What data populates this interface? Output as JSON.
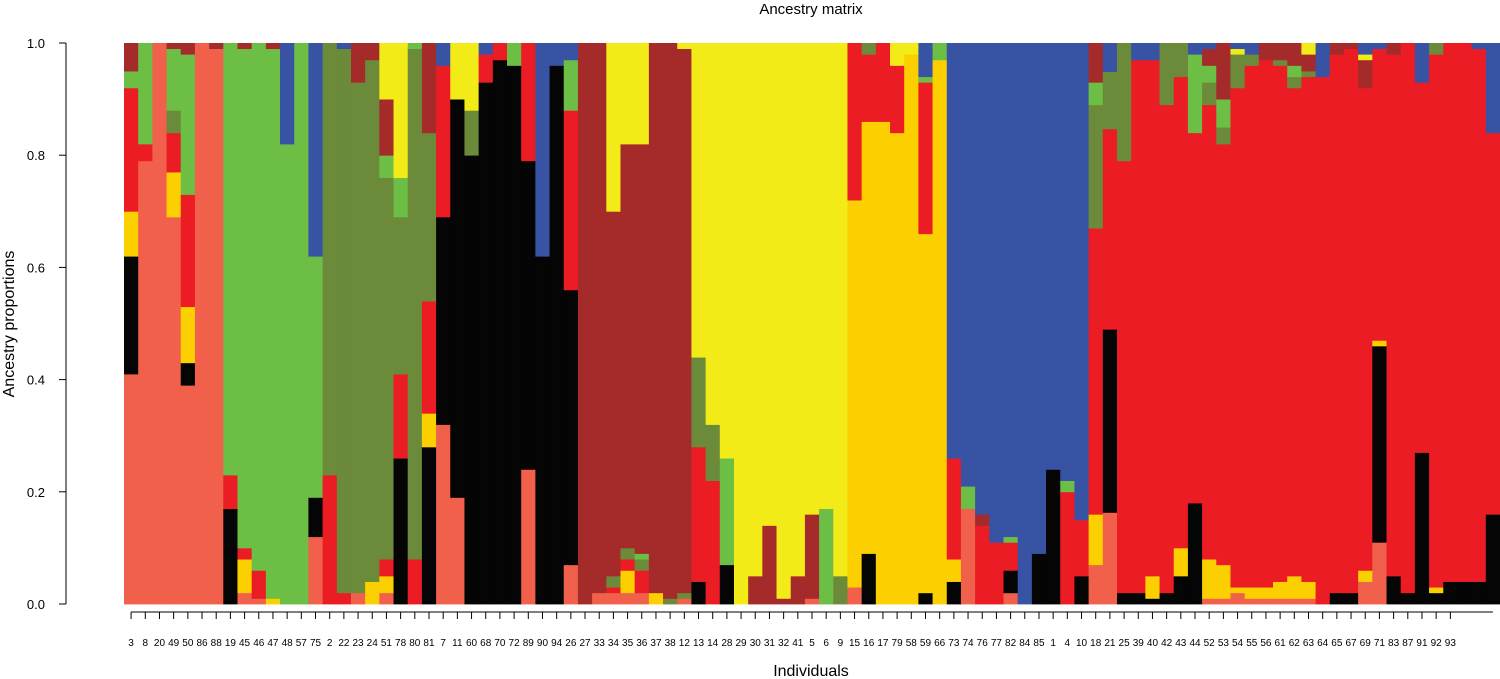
{
  "chart_data": {
    "type": "bar",
    "stacked": true,
    "title": "Ancestry matrix",
    "xlabel": "Individuals",
    "ylabel": "Ancestry proportions",
    "ylim": [
      0,
      1
    ],
    "yticks": [
      "0.0",
      "0.2",
      "0.4",
      "0.6",
      "0.8",
      "1.0"
    ],
    "grid": false,
    "cluster_colors": {
      "salmon": "#f0604a",
      "black": "#050505",
      "gold": "#fcd000",
      "red": "#ec1c24",
      "olive": "#6b8b3a",
      "green": "#6cbe45",
      "darkred": "#a52a2a",
      "yellow": "#f3eb18",
      "blue": "#3853a4"
    },
    "categories": [
      "3",
      "8",
      "20",
      "49",
      "50",
      "86",
      "88",
      "19",
      "45",
      "46",
      "47",
      "48",
      "57",
      "75",
      "2",
      "22",
      "23",
      "24",
      "51",
      "78",
      "80",
      "81",
      "7",
      "11",
      "60",
      "68",
      "70",
      "72",
      "89",
      "90",
      "94",
      "26",
      "27",
      "33",
      "34",
      "35",
      "36",
      "37",
      "38",
      "12",
      "13",
      "14",
      "28",
      "29",
      "30",
      "31",
      "32",
      "41",
      "5",
      "6",
      "9",
      "15",
      "16",
      "17",
      "79",
      "58",
      "59",
      "66",
      "73",
      "74",
      "76",
      "77",
      "82",
      "84",
      "85",
      "1",
      "4",
      "10",
      "18",
      "21",
      "25",
      "39",
      "40",
      "42",
      "43",
      "44",
      "52",
      "53",
      "54",
      "55",
      "56",
      "61",
      "62",
      "63",
      "64",
      "65",
      "67",
      "69",
      "71",
      "83",
      "87",
      "91",
      "92",
      "93"
    ],
    "bars": [
      {
        "salmon": 0.41,
        "black": 0.21,
        "gold": 0.08,
        "red": 0.22,
        "green": 0.03,
        "darkred": 0.05
      },
      {
        "salmon": 0.79,
        "red": 0.03,
        "green": 0.18
      },
      {
        "salmon": 1.0
      },
      {
        "salmon": 0.69,
        "olive": 0.04,
        "gold": 0.08,
        "red": 0.07,
        "green": 0.11,
        "darkred": 0.01
      },
      {
        "salmon": 0.39,
        "black": 0.04,
        "gold": 0.1,
        "red": 0.2,
        "green": 0.25,
        "darkred": 0.02
      },
      {
        "salmon": 1.0
      },
      {
        "salmon": 0.99,
        "darkred": 0.01
      },
      {
        "black": 0.17,
        "red": 0.06,
        "green": 0.77
      },
      {
        "salmon": 0.02,
        "gold": 0.06,
        "red": 0.02,
        "green": 0.89,
        "darkred": 0.01
      },
      {
        "salmon": 0.01,
        "red": 0.05,
        "green": 0.94
      },
      {
        "gold": 0.01,
        "green": 0.98,
        "darkred": 0.01
      },
      {
        "blue": 0.18,
        "green": 0.82
      },
      {
        "green": 1.0
      },
      {
        "salmon": 0.12,
        "black": 0.07,
        "blue": 0.38,
        "green": 0.43
      },
      {
        "olive": 0.77,
        "red": 0.23
      },
      {
        "olive": 0.97,
        "red": 0.02,
        "blue": 0.01
      },
      {
        "salmon": 0.02,
        "olive": 0.91,
        "darkred": 0.07
      },
      {
        "olive": 0.93,
        "gold": 0.04,
        "darkred": 0.03
      },
      {
        "salmon": 0.02,
        "olive": 0.68,
        "gold": 0.03,
        "red": 0.03,
        "green": 0.04,
        "yellow": 0.1,
        "darkred": 0.1
      },
      {
        "black": 0.26,
        "olive": 0.28,
        "red": 0.15,
        "green": 0.07,
        "yellow": 0.24
      },
      {
        "olive": 0.91,
        "red": 0.08,
        "green": 0.01
      },
      {
        "black": 0.28,
        "olive": 0.3,
        "red": 0.2,
        "gold": 0.06,
        "darkred": 0.16
      },
      {
        "salmon": 0.32,
        "black": 0.37,
        "red": 0.27,
        "blue": 0.04
      },
      {
        "salmon": 0.19,
        "black": 0.71,
        "yellow": 0.1
      },
      {
        "black": 0.8,
        "olive": 0.08,
        "yellow": 0.12
      },
      {
        "black": 0.93,
        "red": 0.05,
        "blue": 0.02
      },
      {
        "black": 0.97,
        "red": 0.03
      },
      {
        "black": 0.96,
        "green": 0.04
      },
      {
        "salmon": 0.24,
        "black": 0.55,
        "red": 0.21
      },
      {
        "black": 0.62,
        "blue": 0.38
      },
      {
        "black": 0.96,
        "blue": 0.04
      },
      {
        "salmon": 0.07,
        "black": 0.49,
        "red": 0.32,
        "blue": 0.03,
        "green": 0.09
      },
      {
        "darkred": 1.0
      },
      {
        "salmon": 0.02,
        "darkred": 0.98
      },
      {
        "salmon": 0.02,
        "olive": 0.02,
        "red": 0.01,
        "yellow": 0.3,
        "darkred": 0.65
      },
      {
        "salmon": 0.02,
        "olive": 0.02,
        "gold": 0.04,
        "red": 0.02,
        "yellow": 0.18,
        "darkred": 0.72
      },
      {
        "salmon": 0.02,
        "olive": 0.02,
        "red": 0.04,
        "green": 0.01,
        "yellow": 0.18,
        "darkred": 0.73
      },
      {
        "gold": 0.02,
        "darkred": 0.98
      },
      {
        "olive": 0.01,
        "darkred": 0.99
      },
      {
        "salmon": 0.01,
        "olive": 0.01,
        "yellow": 0.01,
        "darkred": 0.97
      },
      {
        "black": 0.04,
        "olive": 0.16,
        "red": 0.24,
        "yellow": 0.56
      },
      {
        "olive": 0.1,
        "red": 0.22,
        "yellow": 0.68
      },
      {
        "black": 0.07,
        "green": 0.19,
        "yellow": 0.74
      },
      {
        "yellow": 1.0
      },
      {
        "yellow": 0.95,
        "darkred": 0.05
      },
      {
        "yellow": 0.86,
        "darkred": 0.14
      },
      {
        "yellow": 0.99,
        "darkred": 0.01
      },
      {
        "yellow": 0.95,
        "darkred": 0.05
      },
      {
        "salmon": 0.01,
        "yellow": 0.84,
        "darkred": 0.15
      },
      {
        "green": 0.17,
        "yellow": 0.83
      },
      {
        "olive": 0.05,
        "yellow": 0.95
      },
      {
        "salmon": 0.03,
        "gold": 0.69,
        "red": 0.28
      },
      {
        "black": 0.09,
        "olive": 0.02,
        "gold": 0.77,
        "red": 0.12
      },
      {
        "gold": 0.86,
        "red": 0.14
      },
      {
        "gold": 0.84,
        "red": 0.12,
        "yellow": 0.04
      },
      {
        "gold": 0.98,
        "yellow": 0.02
      },
      {
        "black": 0.02,
        "green": 0.01,
        "gold": 0.64,
        "red": 0.27,
        "blue": 0.06
      },
      {
        "green": 0.03,
        "gold": 0.97
      },
      {
        "black": 0.04,
        "gold": 0.04,
        "red": 0.18,
        "blue": 0.74
      },
      {
        "salmon": 0.17,
        "blue": 0.79,
        "green": 0.04
      },
      {
        "red": 0.14,
        "blue": 0.84,
        "darkred": 0.02
      },
      {
        "red": 0.11,
        "blue": 0.89
      },
      {
        "salmon": 0.02,
        "black": 0.04,
        "green": 0.01,
        "red": 0.05,
        "blue": 0.88
      },
      {
        "blue": 1.0
      },
      {
        "black": 0.09,
        "blue": 0.91
      },
      {
        "black": 0.24,
        "blue": 0.76
      },
      {
        "red": 0.2,
        "blue": 0.78,
        "green": 0.02
      },
      {
        "black": 0.05,
        "red": 0.1,
        "blue": 0.85
      },
      {
        "salmon": 0.07,
        "olive": 0.22,
        "gold": 0.09,
        "red": 0.51,
        "green": 0.04,
        "darkred": 0.07
      },
      {
        "salmon": 0.16,
        "black": 0.32,
        "olive": 0.1,
        "red": 0.35,
        "blue": 0.05
      },
      {
        "black": 0.02,
        "olive": 0.21,
        "red": 0.77
      },
      {
        "black": 0.02,
        "red": 0.95,
        "blue": 0.03
      },
      {
        "black": 0.01,
        "gold": 0.04,
        "red": 0.92,
        "blue": 0.03
      },
      {
        "black": 0.02,
        "olive": 0.11,
        "red": 0.87
      },
      {
        "black": 0.05,
        "olive": 0.06,
        "gold": 0.05,
        "red": 0.84
      },
      {
        "black": 0.18,
        "red": 0.66,
        "blue": 0.02,
        "green": 0.14
      },
      {
        "salmon": 0.01,
        "olive": 0.04,
        "gold": 0.07,
        "red": 0.81,
        "darkred": 0.03,
        "green": 0.03,
        "blue": 0.01
      },
      {
        "salmon": 0.01,
        "olive": 0.03,
        "gold": 0.06,
        "red": 0.75,
        "green": 0.05,
        "darkred": 0.1
      },
      {
        "salmon": 0.02,
        "olive": 0.06,
        "gold": 0.01,
        "red": 0.89,
        "yellow": 0.01,
        "blue": 0.01
      },
      {
        "salmon": 0.01,
        "olive": 0.02,
        "gold": 0.02,
        "red": 0.93,
        "blue": 0.02
      },
      {
        "salmon": 0.01,
        "gold": 0.02,
        "red": 0.94,
        "darkred": 0.03
      },
      {
        "salmon": 0.01,
        "olive": 0.01,
        "gold": 0.03,
        "red": 0.92,
        "darkred": 0.03
      },
      {
        "salmon": 0.01,
        "olive": 0.02,
        "gold": 0.04,
        "red": 0.87,
        "green": 0.02,
        "darkred": 0.04
      },
      {
        "salmon": 0.01,
        "olive": 0.01,
        "gold": 0.03,
        "red": 0.9,
        "yellow": 0.02,
        "darkred": 0.03
      },
      {
        "red": 0.94,
        "blue": 0.06
      },
      {
        "black": 0.02,
        "red": 0.96,
        "darkred": 0.02
      },
      {
        "black": 0.02,
        "red": 0.97,
        "darkred": 0.01
      },
      {
        "salmon": 0.04,
        "gold": 0.02,
        "red": 0.86,
        "blue": 0.02,
        "yellow": 0.01,
        "darkred": 0.05
      },
      {
        "salmon": 0.11,
        "black": 0.35,
        "gold": 0.01,
        "red": 0.52,
        "blue": 0.01
      },
      {
        "black": 0.05,
        "red": 0.93,
        "darkred": 0.02
      },
      {
        "black": 0.02,
        "red": 0.98
      },
      {
        "black": 0.27,
        "red": 0.66,
        "blue": 0.07
      },
      {
        "black": 0.02,
        "olive": 0.02,
        "gold": 0.01,
        "red": 0.95
      },
      {
        "black": 0.04,
        "red": 0.96
      },
      {
        "black": 0.04,
        "red": 0.96
      },
      {
        "black": 0.04,
        "red": 0.95,
        "blue": 0.01
      },
      {
        "black": 0.16,
        "red": 0.68,
        "blue": 0.16
      }
    ]
  }
}
